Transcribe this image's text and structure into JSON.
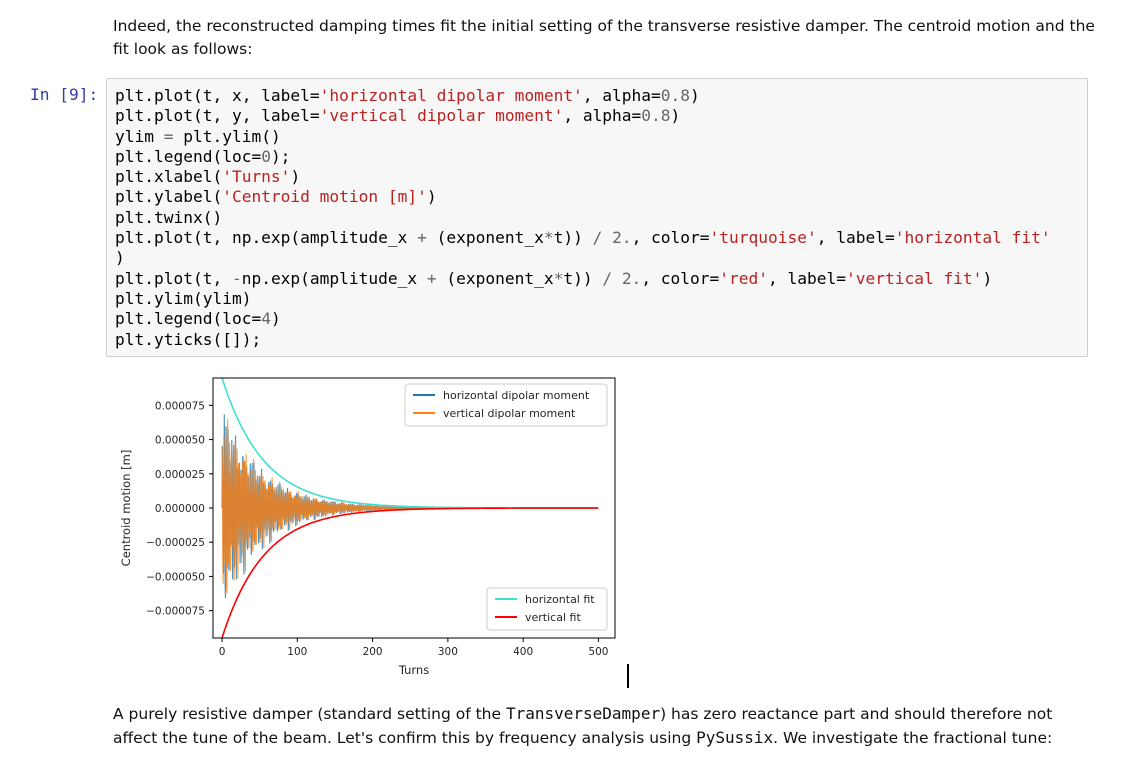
{
  "markdown_top": "Indeed, the reconstructed damping times fit the initial setting of the transverse resistive damper. The centroid motion and the fit look as follows:",
  "cell": {
    "prompt": "In [9]:",
    "code_lines": [
      [
        {
          "t": "plt.plot(t, x, label="
        },
        {
          "t": "'horizontal dipolar moment'",
          "c": "str"
        },
        {
          "t": ", alpha="
        },
        {
          "t": "0.8",
          "c": "num"
        },
        {
          "t": ")"
        }
      ],
      [
        {
          "t": "plt.plot(t, y, label="
        },
        {
          "t": "'vertical dipolar moment'",
          "c": "str"
        },
        {
          "t": ", alpha="
        },
        {
          "t": "0.8",
          "c": "num"
        },
        {
          "t": ")"
        }
      ],
      [
        {
          "t": "ylim "
        },
        {
          "t": "=",
          "c": "op"
        },
        {
          "t": " plt.ylim()"
        }
      ],
      [
        {
          "t": "plt.legend(loc="
        },
        {
          "t": "0",
          "c": "num"
        },
        {
          "t": ");"
        }
      ],
      [
        {
          "t": "plt.xlabel("
        },
        {
          "t": "'Turns'",
          "c": "str"
        },
        {
          "t": ")"
        }
      ],
      [
        {
          "t": "plt.ylabel("
        },
        {
          "t": "'Centroid motion [m]'",
          "c": "str"
        },
        {
          "t": ")"
        }
      ],
      [
        {
          "t": "plt.twinx()"
        }
      ],
      [
        {
          "t": "plt.plot(t, np.exp(amplitude_x "
        },
        {
          "t": "+",
          "c": "op"
        },
        {
          "t": " (exponent_x"
        },
        {
          "t": "*",
          "c": "op"
        },
        {
          "t": "t)) "
        },
        {
          "t": "/",
          "c": "op"
        },
        {
          "t": " "
        },
        {
          "t": "2.",
          "c": "num"
        },
        {
          "t": ", color="
        },
        {
          "t": "'turquoise'",
          "c": "str"
        },
        {
          "t": ", label="
        },
        {
          "t": "'horizontal fit'",
          "c": "str"
        }
      ],
      [
        {
          "t": ")"
        }
      ],
      [
        {
          "t": "plt.plot(t, "
        },
        {
          "t": "-",
          "c": "op"
        },
        {
          "t": "np.exp(amplitude_x "
        },
        {
          "t": "+",
          "c": "op"
        },
        {
          "t": " (exponent_x"
        },
        {
          "t": "*",
          "c": "op"
        },
        {
          "t": "t)) "
        },
        {
          "t": "/",
          "c": "op"
        },
        {
          "t": " "
        },
        {
          "t": "2.",
          "c": "num"
        },
        {
          "t": ", color="
        },
        {
          "t": "'red'",
          "c": "str"
        },
        {
          "t": ", label="
        },
        {
          "t": "'vertical fit'",
          "c": "str"
        },
        {
          "t": ")"
        }
      ],
      [
        {
          "t": "plt.ylim(ylim)"
        }
      ],
      [
        {
          "t": "plt.legend(loc="
        },
        {
          "t": "4",
          "c": "num"
        },
        {
          "t": ")"
        }
      ],
      [
        {
          "t": "plt.yticks([]);"
        }
      ]
    ]
  },
  "chart_data": {
    "type": "line",
    "xlabel": "Turns",
    "ylabel": "Centroid motion [m]",
    "xlim": [
      -12,
      522
    ],
    "ylim": [
      -9.5e-05,
      9.5e-05
    ],
    "x_ticks": [
      0,
      100,
      200,
      300,
      400,
      500
    ],
    "x_tick_labels": [
      "0",
      "100",
      "200",
      "300",
      "400",
      "500"
    ],
    "y_ticks": [
      7.5e-05,
      5e-05,
      2.5e-05,
      0,
      -2.5e-05,
      -5e-05,
      -7.5e-05
    ],
    "y_tick_labels": [
      "0.000075",
      "0.000050",
      "0.000025",
      "0.000000",
      "−0.000025",
      "−0.000050",
      "−0.000075"
    ],
    "grid": false,
    "legends": [
      {
        "placement": "top-right",
        "entries": [
          {
            "label": "horizontal dipolar moment",
            "color": "#1f77b4"
          },
          {
            "label": "vertical dipolar moment",
            "color": "#ff7f0e"
          }
        ]
      },
      {
        "placement": "bottom-right",
        "entries": [
          {
            "label": "horizontal fit",
            "color": "#40e0d0"
          },
          {
            "label": "vertical fit",
            "color": "#ff0000"
          }
        ]
      }
    ],
    "series": [
      {
        "name": "horizontal dipolar moment",
        "kind": "oscillation",
        "color": "#1f77b4",
        "alpha": 0.8,
        "x_range": [
          0,
          500
        ],
        "peak_amplitude": 8.5e-05,
        "decay_turns": 55
      },
      {
        "name": "vertical dipolar moment",
        "kind": "oscillation",
        "color": "#ff7f0e",
        "alpha": 0.8,
        "x_range": [
          0,
          500
        ],
        "peak_amplitude": 8.5e-05,
        "decay_turns": 55
      },
      {
        "name": "horizontal fit",
        "kind": "envelope",
        "color": "#40e0d0",
        "x_range": [
          0,
          500
        ],
        "initial": 9.5e-05,
        "decay_turns": 55
      },
      {
        "name": "vertical fit",
        "kind": "envelope",
        "color": "#ff0000",
        "x_range": [
          0,
          500
        ],
        "initial": -9.5e-05,
        "decay_turns": 55
      }
    ]
  },
  "markdown_bottom": {
    "p1": "A purely resistive damper (standard setting of the ",
    "code1": "TransverseDamper",
    "p2": ") has zero reactance part and should therefore not affect the tune of the beam. Let's confirm this by frequency analysis using ",
    "code2": "PySussix",
    "p3": ". We investigate the fractional tune:"
  }
}
